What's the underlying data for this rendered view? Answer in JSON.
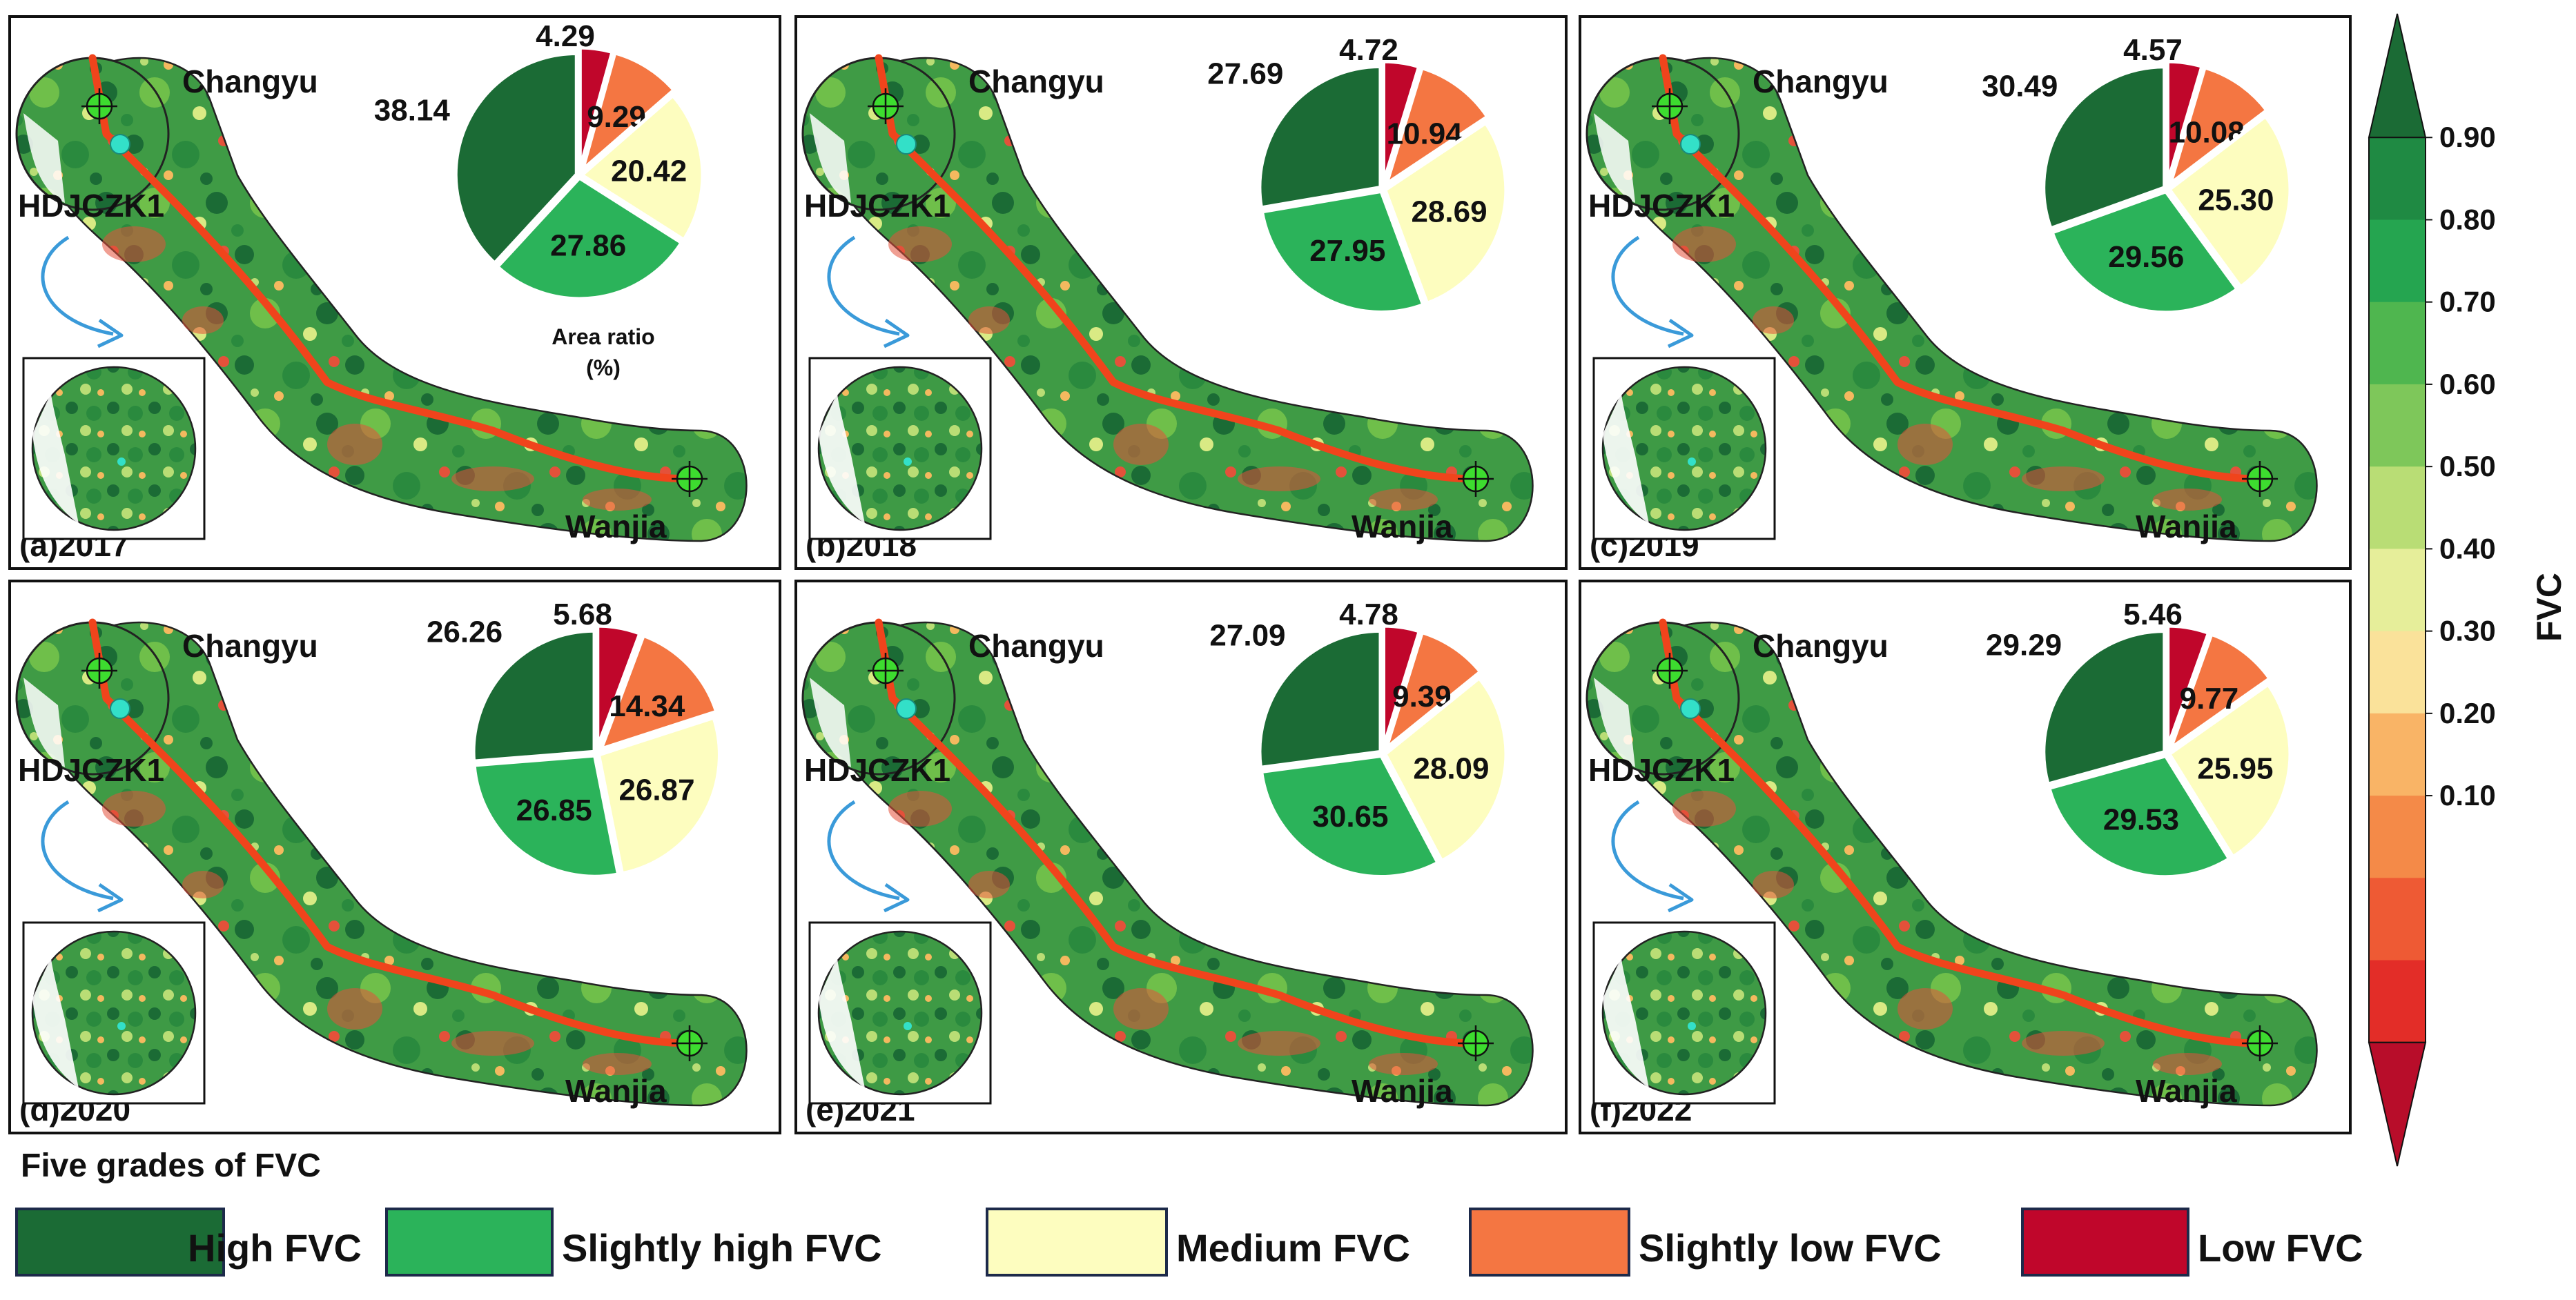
{
  "panels": [
    {
      "label": "(a)2017",
      "start": "Changyu",
      "end": "Wanjia",
      "borehole": "HDJCZK1",
      "pie": {
        "high": 38.14,
        "slightly_high": 27.86,
        "medium": 20.42,
        "slightly_low": 9.29,
        "low": 4.29
      },
      "pie_label": "Area ratio\n(%)"
    },
    {
      "label": "(b)2018",
      "start": "Changyu",
      "end": "Wanjia",
      "borehole": "HDJCZK1",
      "pie": {
        "high": 27.69,
        "slightly_high": 27.95,
        "medium": 28.69,
        "slightly_low": 10.94,
        "low": 4.72
      }
    },
    {
      "label": "(c)2019",
      "start": "Changyu",
      "end": "Wanjia",
      "borehole": "HDJCZK1",
      "pie": {
        "high": 30.49,
        "slightly_high": 29.56,
        "medium": 25.3,
        "slightly_low": 10.08,
        "low": 4.57
      }
    },
    {
      "label": "(d)2020",
      "start": "Changyu",
      "end": "Wanjia",
      "borehole": "HDJCZK1",
      "pie": {
        "high": 26.26,
        "slightly_high": 26.85,
        "medium": 26.87,
        "slightly_low": 14.34,
        "low": 5.68
      }
    },
    {
      "label": "(e)2021",
      "start": "Changyu",
      "end": "Wanjia",
      "borehole": "HDJCZK1",
      "pie": {
        "high": 27.09,
        "slightly_high": 30.65,
        "medium": 28.09,
        "slightly_low": 9.39,
        "low": 4.78
      }
    },
    {
      "label": "(f)2022",
      "start": "Changyu",
      "end": "Wanjia",
      "borehole": "HDJCZK1",
      "pie": {
        "high": 29.29,
        "slightly_high": 29.53,
        "medium": 25.95,
        "slightly_low": 9.77,
        "low": 5.46
      }
    }
  ],
  "pie_label_text": [
    "Area ratio",
    "(%)"
  ],
  "colorbar": {
    "title": "FVC",
    "ticks": [
      "0.90",
      "0.80",
      "0.70",
      "0.60",
      "0.50",
      "0.40",
      "0.30",
      "0.20",
      "0.10"
    ],
    "colors": [
      "#1b6b35",
      "#1f8a43",
      "#25a550",
      "#4fb64f",
      "#7ec75a",
      "#b9dd75",
      "#e6ee9a",
      "#fae29a",
      "#f9b466",
      "#f48a48",
      "#ee5a34",
      "#e32d28",
      "#b80d2a"
    ]
  },
  "legend": {
    "title": "Five grades of FVC",
    "items": [
      {
        "label": "High FVC",
        "color": "#1b6b35"
      },
      {
        "label": "Slightly high FVC",
        "color": "#2bb35a"
      },
      {
        "label": "Medium FVC",
        "color": "#fdfdbf"
      },
      {
        "label": "Slightly low FVC",
        "color": "#f47642"
      },
      {
        "label": "Low FVC",
        "color": "#c0062b"
      }
    ]
  }
}
